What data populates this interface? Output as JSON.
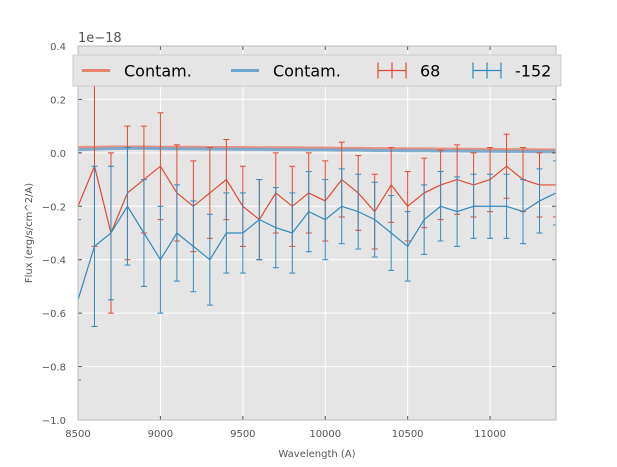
{
  "chart_data": {
    "type": "line",
    "title": "",
    "xlabel": "Wavelength (A)",
    "ylabel": "Flux (erg/s/cm^2/A)",
    "y_offset_label": "1e−18",
    "xlim": [
      8500,
      11400
    ],
    "ylim": [
      -1.0,
      0.4
    ],
    "x_ticks": [
      8500,
      9000,
      9500,
      10000,
      10500,
      11000
    ],
    "x_tick_labels": [
      "8500",
      "9000",
      "9500",
      "10000",
      "10500",
      "11000"
    ],
    "y_ticks": [
      0.4,
      0.2,
      0.0,
      -0.2,
      -0.4,
      -0.6,
      -0.8,
      -1.0
    ],
    "y_tick_labels": [
      "0.4",
      "0.2",
      "0.0",
      "−0.2",
      "−0.4",
      "−0.6",
      "−0.8",
      "−1.0"
    ],
    "grid": true,
    "background": "#e5e5e5",
    "legend_position": "top",
    "legend": [
      {
        "label": "Contam.",
        "color": "#e8836f",
        "kind": "line"
      },
      {
        "label": "Contam.",
        "color": "#6fa4cc",
        "kind": "line"
      },
      {
        "label": "68",
        "color": "#e24a33",
        "kind": "errorbar"
      },
      {
        "label": "-152",
        "color": "#348abd",
        "kind": "errorbar"
      }
    ],
    "x_sample": [
      8500,
      8600,
      8700,
      8800,
      8900,
      9000,
      9100,
      9200,
      9300,
      9400,
      9500,
      9600,
      9700,
      9800,
      9900,
      10000,
      10100,
      10200,
      10300,
      10400,
      10500,
      10600,
      10700,
      10800,
      10900,
      11000,
      11100,
      11200,
      11300,
      11400
    ],
    "series": [
      {
        "name": "Contam.",
        "type": "line",
        "color": "#e8836f",
        "values": [
          0.02,
          0.021,
          0.022,
          0.022,
          0.022,
          0.021,
          0.021,
          0.021,
          0.02,
          0.02,
          0.02,
          0.019,
          0.019,
          0.019,
          0.018,
          0.018,
          0.017,
          0.017,
          0.016,
          0.016,
          0.015,
          0.015,
          0.014,
          0.014,
          0.013,
          0.013,
          0.012,
          0.012,
          0.011,
          0.011
        ]
      },
      {
        "name": "Contam.",
        "type": "line",
        "color": "#6fa4cc",
        "values": [
          0.012,
          0.014,
          0.016,
          0.017,
          0.017,
          0.016,
          0.015,
          0.015,
          0.014,
          0.014,
          0.013,
          0.013,
          0.012,
          0.012,
          0.011,
          0.011,
          0.01,
          0.01,
          0.009,
          0.009,
          0.008,
          0.008,
          0.007,
          0.007,
          0.006,
          0.006,
          0.005,
          0.005,
          0.004,
          0.004
        ]
      },
      {
        "name": "68",
        "type": "errorbar",
        "color": "#e24a33",
        "values": [
          -0.2,
          -0.05,
          -0.3,
          -0.15,
          -0.1,
          -0.05,
          -0.15,
          -0.2,
          -0.15,
          -0.1,
          -0.2,
          -0.25,
          -0.15,
          -0.2,
          -0.15,
          -0.18,
          -0.1,
          -0.15,
          -0.22,
          -0.12,
          -0.2,
          -0.15,
          -0.12,
          -0.1,
          -0.12,
          -0.1,
          -0.05,
          -0.1,
          -0.12,
          -0.12
        ],
        "errors": [
          0.2,
          0.3,
          0.3,
          0.25,
          0.2,
          0.2,
          0.18,
          0.17,
          0.17,
          0.15,
          0.15,
          0.15,
          0.15,
          0.15,
          0.15,
          0.15,
          0.14,
          0.14,
          0.14,
          0.14,
          0.13,
          0.13,
          0.13,
          0.13,
          0.12,
          0.12,
          0.12,
          0.12,
          0.12,
          0.12
        ]
      },
      {
        "name": "-152",
        "type": "errorbar",
        "color": "#348abd",
        "values": [
          -0.55,
          -0.35,
          -0.3,
          -0.2,
          -0.3,
          -0.4,
          -0.3,
          -0.35,
          -0.4,
          -0.3,
          -0.3,
          -0.25,
          -0.28,
          -0.3,
          -0.22,
          -0.25,
          -0.2,
          -0.22,
          -0.25,
          -0.3,
          -0.35,
          -0.25,
          -0.2,
          -0.22,
          -0.2,
          -0.2,
          -0.2,
          -0.22,
          -0.18,
          -0.15
        ],
        "errors": [
          0.3,
          0.3,
          0.25,
          0.22,
          0.2,
          0.2,
          0.18,
          0.17,
          0.17,
          0.15,
          0.15,
          0.15,
          0.15,
          0.15,
          0.15,
          0.15,
          0.14,
          0.14,
          0.14,
          0.14,
          0.13,
          0.13,
          0.13,
          0.13,
          0.12,
          0.12,
          0.12,
          0.12,
          0.12,
          0.12
        ]
      }
    ]
  }
}
